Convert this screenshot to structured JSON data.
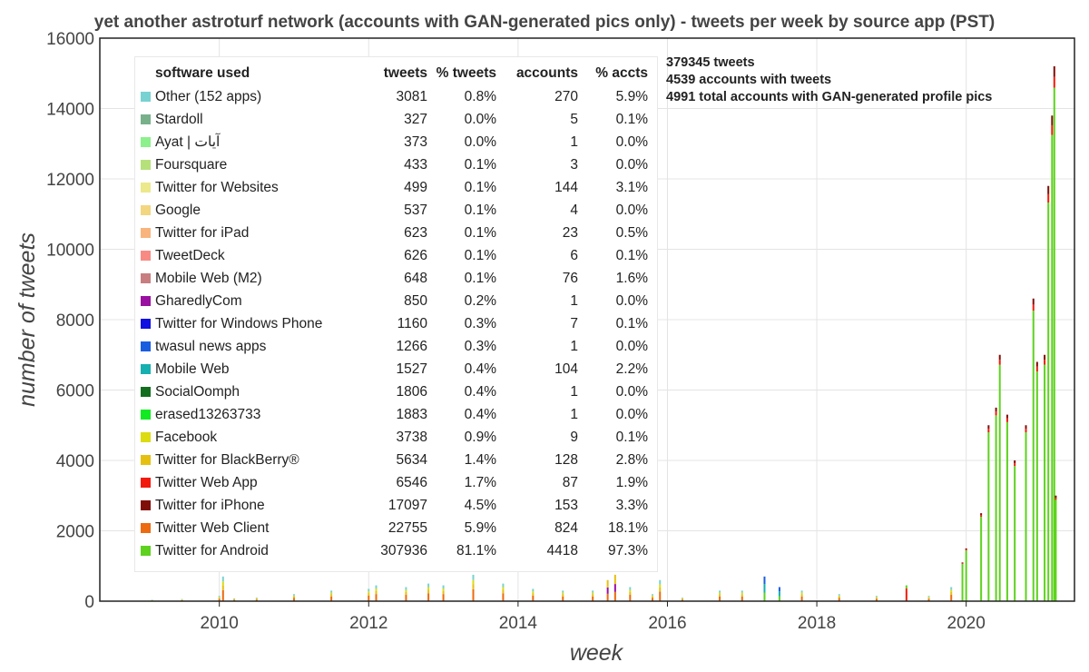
{
  "chart_data": {
    "type": "bar",
    "stacked": true,
    "title": "yet another astroturf network (accounts with GAN-generated pics only) - tweets per week by source app (PST)",
    "xlabel": "week",
    "ylabel": "number of tweets",
    "xlim": [
      2008.4,
      2021.45
    ],
    "ylim": [
      0,
      16000
    ],
    "x_ticks": [
      "2010",
      "2012",
      "2014",
      "2016",
      "2018",
      "2020"
    ],
    "y_ticks": [
      "0",
      "2000",
      "4000",
      "6000",
      "8000",
      "10000",
      "12000",
      "14000",
      "16000"
    ],
    "grid": true,
    "legend_position": "top-left",
    "annotations": [
      "379345 tweets",
      "4539 accounts with tweets",
      "4991 total accounts with GAN-generated profile pics"
    ],
    "legend_columns": [
      "software used",
      "tweets",
      "% tweets",
      "accounts",
      "% accts"
    ],
    "series": [
      {
        "name": "Other (152 apps)",
        "color": "#78d2d2",
        "tweets": "3081",
        "pct_tweets": "0.8%",
        "accounts": "270",
        "pct_accts": "5.9%"
      },
      {
        "name": "Stardoll",
        "color": "#78b08a",
        "tweets": "327",
        "pct_tweets": "0.0%",
        "accounts": "5",
        "pct_accts": "0.1%"
      },
      {
        "name": "Ayat | آيات",
        "color": "#8cf08c",
        "tweets": "373",
        "pct_tweets": "0.0%",
        "accounts": "1",
        "pct_accts": "0.0%"
      },
      {
        "name": "Foursquare",
        "color": "#b6e07a",
        "tweets": "433",
        "pct_tweets": "0.1%",
        "accounts": "3",
        "pct_accts": "0.0%"
      },
      {
        "name": "Twitter for Websites",
        "color": "#ece88c",
        "tweets": "499",
        "pct_tweets": "0.1%",
        "accounts": "144",
        "pct_accts": "3.1%"
      },
      {
        "name": "Google",
        "color": "#f2d680",
        "tweets": "537",
        "pct_tweets": "0.1%",
        "accounts": "4",
        "pct_accts": "0.0%"
      },
      {
        "name": "Twitter for iPad",
        "color": "#f8b47c",
        "tweets": "623",
        "pct_tweets": "0.1%",
        "accounts": "23",
        "pct_accts": "0.5%"
      },
      {
        "name": "TweetDeck",
        "color": "#f88a84",
        "tweets": "626",
        "pct_tweets": "0.1%",
        "accounts": "6",
        "pct_accts": "0.1%"
      },
      {
        "name": "Mobile Web (M2)",
        "color": "#c87e80",
        "tweets": "648",
        "pct_tweets": "0.1%",
        "accounts": "76",
        "pct_accts": "1.6%"
      },
      {
        "name": "GharedlyCom",
        "color": "#9a10a0",
        "tweets": "850",
        "pct_tweets": "0.2%",
        "accounts": "1",
        "pct_accts": "0.0%"
      },
      {
        "name": "Twitter for Windows Phone",
        "color": "#1010e0",
        "tweets": "1160",
        "pct_tweets": "0.3%",
        "accounts": "7",
        "pct_accts": "0.1%"
      },
      {
        "name": "twasul news apps",
        "color": "#1a5ee0",
        "tweets": "1266",
        "pct_tweets": "0.3%",
        "accounts": "1",
        "pct_accts": "0.0%"
      },
      {
        "name": "Mobile Web",
        "color": "#16b0b0",
        "tweets": "1527",
        "pct_tweets": "0.4%",
        "accounts": "104",
        "pct_accts": "2.2%"
      },
      {
        "name": "SocialOomph",
        "color": "#146e20",
        "tweets": "1806",
        "pct_tweets": "0.4%",
        "accounts": "1",
        "pct_accts": "0.0%"
      },
      {
        "name": "erased13263733",
        "color": "#12ea22",
        "tweets": "1883",
        "pct_tweets": "0.4%",
        "accounts": "1",
        "pct_accts": "0.0%"
      },
      {
        "name": "Facebook",
        "color": "#dcdc10",
        "tweets": "3738",
        "pct_tweets": "0.9%",
        "accounts": "9",
        "pct_accts": "0.1%"
      },
      {
        "name": "Twitter for BlackBerry®",
        "color": "#e6c010",
        "tweets": "5634",
        "pct_tweets": "1.4%",
        "accounts": "128",
        "pct_accts": "2.8%"
      },
      {
        "name": "Twitter Web App",
        "color": "#f21a0c",
        "tweets": "6546",
        "pct_tweets": "1.7%",
        "accounts": "87",
        "pct_accts": "1.9%"
      },
      {
        "name": "Twitter for iPhone",
        "color": "#800e08",
        "tweets": "17097",
        "pct_tweets": "4.5%",
        "accounts": "153",
        "pct_accts": "3.3%"
      },
      {
        "name": "Twitter Web Client",
        "color": "#ec6a10",
        "tweets": "22755",
        "pct_tweets": "5.9%",
        "accounts": "824",
        "pct_accts": "18.1%"
      },
      {
        "name": "Twitter for Android",
        "color": "#5ed21e",
        "tweets": "307936",
        "pct_tweets": "81.1%",
        "accounts": "4418",
        "pct_accts": "97.3%"
      }
    ],
    "weekly_totals": {
      "note": "approximate weekly stacked totals read off the chart",
      "points": [
        [
          2009.1,
          40
        ],
        [
          2009.5,
          60
        ],
        [
          2010.0,
          150
        ],
        [
          2010.05,
          700
        ],
        [
          2010.2,
          80
        ],
        [
          2010.5,
          100
        ],
        [
          2011.0,
          200
        ],
        [
          2011.5,
          300
        ],
        [
          2012.0,
          350
        ],
        [
          2012.1,
          450
        ],
        [
          2012.5,
          400
        ],
        [
          2012.8,
          500
        ],
        [
          2013.0,
          450
        ],
        [
          2013.4,
          750
        ],
        [
          2013.8,
          500
        ],
        [
          2014.2,
          350
        ],
        [
          2014.6,
          300
        ],
        [
          2015.0,
          300
        ],
        [
          2015.2,
          600
        ],
        [
          2015.3,
          750
        ],
        [
          2015.5,
          400
        ],
        [
          2015.8,
          200
        ],
        [
          2015.9,
          600
        ],
        [
          2016.2,
          100
        ],
        [
          2016.7,
          300
        ],
        [
          2017.0,
          300
        ],
        [
          2017.3,
          700
        ],
        [
          2017.5,
          400
        ],
        [
          2017.8,
          300
        ],
        [
          2018.3,
          200
        ],
        [
          2018.8,
          150
        ],
        [
          2019.2,
          450
        ],
        [
          2019.5,
          150
        ],
        [
          2019.8,
          400
        ],
        [
          2019.95,
          1100
        ],
        [
          2020.0,
          1500
        ],
        [
          2020.2,
          2500
        ],
        [
          2020.3,
          5000
        ],
        [
          2020.4,
          5500
        ],
        [
          2020.45,
          7000
        ],
        [
          2020.55,
          5300
        ],
        [
          2020.65,
          4000
        ],
        [
          2020.8,
          5000
        ],
        [
          2020.9,
          8600
        ],
        [
          2020.95,
          6800
        ],
        [
          2021.05,
          7000
        ],
        [
          2021.1,
          11800
        ],
        [
          2021.15,
          13800
        ],
        [
          2021.18,
          15200
        ],
        [
          2021.2,
          3000
        ]
      ]
    }
  }
}
